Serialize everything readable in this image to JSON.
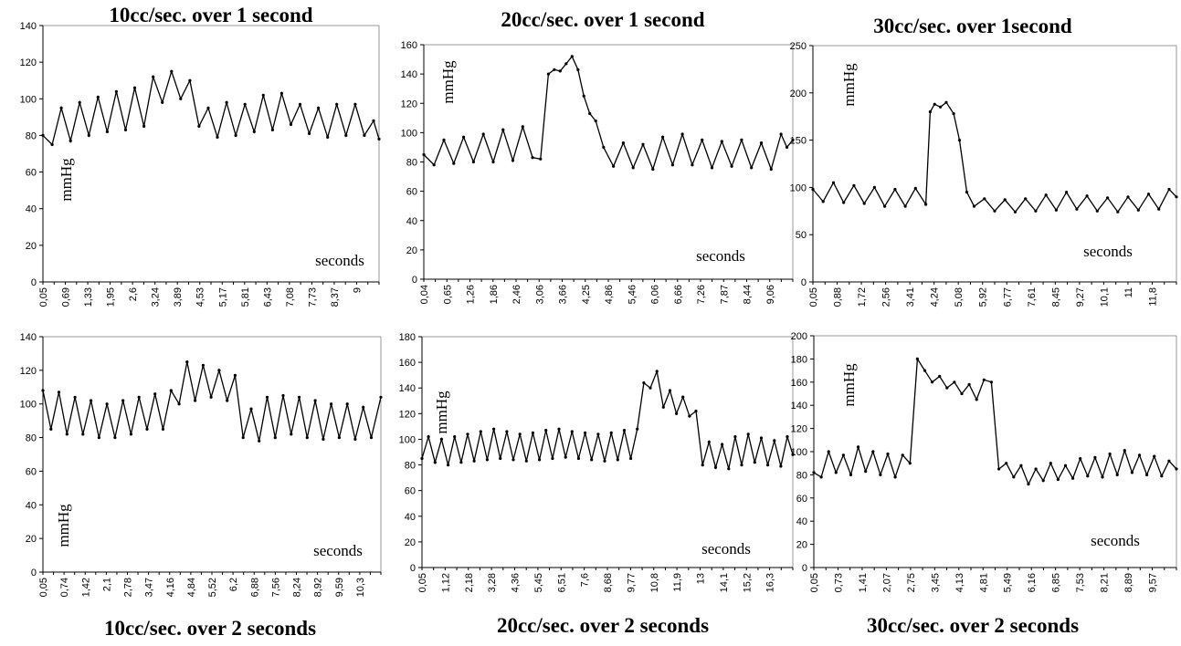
{
  "chart_data": [
    {
      "type": "line",
      "title": "10cc/sec. over 1 second",
      "ylabel": "mmHg",
      "xlabel": "seconds",
      "ylim": [
        0,
        140
      ],
      "yticks": [
        0,
        20,
        40,
        60,
        80,
        100,
        120,
        140
      ],
      "xticks": [
        "0,05",
        "0,69",
        "1,33",
        "1,95",
        "2,6",
        "3,24",
        "3,89",
        "4,53",
        "5,17",
        "5,81",
        "6,43",
        "7,08",
        "7,73",
        "8,37",
        "9"
      ],
      "xrange": [
        0.05,
        9.2
      ],
      "series": [
        {
          "x": [
            0.05,
            0.3,
            0.55,
            0.8,
            1.05,
            1.3,
            1.55,
            1.8,
            2.05,
            2.3,
            2.55,
            2.8,
            3.05,
            3.3,
            3.55,
            3.8,
            4.05,
            4.3,
            4.55,
            4.8,
            5.05,
            5.3,
            5.55,
            5.8,
            6.05,
            6.3,
            6.55,
            6.8,
            7.05,
            7.3,
            7.55,
            7.8,
            8.05,
            8.3,
            8.55,
            8.8,
            9.05,
            9.2
          ],
          "y": [
            80,
            75,
            95,
            77,
            98,
            80,
            101,
            82,
            104,
            83,
            106,
            85,
            112,
            98,
            115,
            100,
            110,
            85,
            95,
            79,
            98,
            80,
            97,
            82,
            102,
            83,
            103,
            86,
            97,
            81,
            95,
            79,
            97,
            80,
            97,
            80,
            88,
            78
          ]
        }
      ]
    },
    {
      "type": "line",
      "title": "20cc/sec. over 1 second",
      "ylabel": "mmHg",
      "xlabel": "seconds",
      "ylim": [
        0,
        160
      ],
      "yticks": [
        0,
        20,
        40,
        60,
        80,
        100,
        120,
        140,
        160
      ],
      "xticks": [
        "0,04",
        "0,65",
        "1,26",
        "1,86",
        "2,46",
        "3,06",
        "3,66",
        "4,25",
        "4,86",
        "5,46",
        "6,06",
        "6,66",
        "7,26",
        "7,87",
        "8,44",
        "9,06"
      ],
      "xrange": [
        0.04,
        9.4
      ],
      "series": [
        {
          "x": [
            0.04,
            0.3,
            0.55,
            0.8,
            1.05,
            1.3,
            1.55,
            1.8,
            2.05,
            2.3,
            2.55,
            2.8,
            3.0,
            3.2,
            3.35,
            3.5,
            3.65,
            3.8,
            3.95,
            4.1,
            4.25,
            4.4,
            4.6,
            4.85,
            5.1,
            5.35,
            5.6,
            5.85,
            6.1,
            6.35,
            6.6,
            6.85,
            7.1,
            7.35,
            7.6,
            7.85,
            8.1,
            8.35,
            8.6,
            8.85,
            9.1,
            9.25,
            9.4
          ],
          "y": [
            85,
            78,
            95,
            79,
            97,
            80,
            99,
            80,
            102,
            81,
            104,
            83,
            82,
            140,
            143,
            142,
            147,
            152,
            143,
            125,
            113,
            108,
            90,
            77,
            93,
            76,
            92,
            75,
            97,
            78,
            99,
            78,
            95,
            76,
            94,
            77,
            95,
            76,
            93,
            75,
            99,
            90,
            95
          ]
        }
      ]
    },
    {
      "type": "line",
      "title": "30cc/sec. over 1second",
      "ylabel": "mmHg",
      "xlabel": "seconds",
      "ylim": [
        0,
        250
      ],
      "yticks": [
        0,
        50,
        100,
        150,
        200,
        250
      ],
      "xticks": [
        "0,05",
        "0,88",
        "1,72",
        "2,56",
        "3,41",
        "4,24",
        "5,08",
        "5,92",
        "6,77",
        "7,61",
        "8,45",
        "9,27",
        "10,1",
        "11",
        "11,8"
      ],
      "xrange": [
        0.05,
        12.45
      ],
      "series": [
        {
          "x": [
            0.05,
            0.4,
            0.75,
            1.1,
            1.45,
            1.8,
            2.15,
            2.5,
            2.85,
            3.2,
            3.55,
            3.9,
            4.05,
            4.2,
            4.4,
            4.6,
            4.85,
            5.05,
            5.3,
            5.55,
            5.9,
            6.25,
            6.6,
            6.95,
            7.3,
            7.65,
            8.0,
            8.35,
            8.7,
            9.05,
            9.4,
            9.75,
            10.1,
            10.45,
            10.8,
            11.15,
            11.5,
            11.85,
            12.2,
            12.45
          ],
          "y": [
            98,
            85,
            105,
            84,
            102,
            83,
            100,
            80,
            98,
            80,
            99,
            82,
            180,
            188,
            185,
            190,
            178,
            150,
            95,
            80,
            88,
            75,
            87,
            74,
            88,
            75,
            92,
            76,
            95,
            77,
            91,
            75,
            89,
            74,
            90,
            76,
            93,
            77,
            98,
            90
          ]
        }
      ]
    },
    {
      "type": "line",
      "title": "10cc/sec. over 2 seconds",
      "ylabel": "mmHg",
      "xlabel": "seconds",
      "ylim": [
        0,
        140
      ],
      "yticks": [
        0,
        20,
        40,
        60,
        80,
        100,
        120,
        140
      ],
      "xticks": [
        "0,05",
        "0,74",
        "1,42",
        "2,1",
        "2,78",
        "3,47",
        "4,16",
        "4,84",
        "5,52",
        "6,2",
        "6,88",
        "7,56",
        "8,24",
        "8,92",
        "9,59",
        "10,3"
      ],
      "xrange": [
        0.05,
        10.6
      ],
      "series": [
        {
          "x": [
            0.05,
            0.3,
            0.55,
            0.8,
            1.05,
            1.3,
            1.55,
            1.8,
            2.05,
            2.3,
            2.55,
            2.8,
            3.05,
            3.3,
            3.55,
            3.8,
            4.05,
            4.3,
            4.55,
            4.8,
            5.05,
            5.3,
            5.55,
            5.8,
            6.05,
            6.3,
            6.55,
            6.8,
            7.05,
            7.3,
            7.55,
            7.8,
            8.05,
            8.3,
            8.55,
            8.8,
            9.05,
            9.3,
            9.55,
            9.8,
            10.05,
            10.3,
            10.6
          ],
          "y": [
            108,
            85,
            107,
            82,
            104,
            82,
            102,
            80,
            100,
            80,
            102,
            82,
            104,
            85,
            106,
            85,
            108,
            100,
            125,
            102,
            123,
            104,
            120,
            102,
            117,
            80,
            97,
            78,
            104,
            80,
            105,
            82,
            104,
            80,
            102,
            79,
            100,
            80,
            100,
            79,
            98,
            80,
            104
          ]
        }
      ]
    },
    {
      "type": "line",
      "title": "20cc/sec. over 2 seconds",
      "ylabel": "mmHg",
      "xlabel": "seconds",
      "ylim": [
        0,
        180
      ],
      "yticks": [
        0,
        20,
        40,
        60,
        80,
        100,
        120,
        140,
        160,
        180
      ],
      "xticks": [
        "0,05",
        "1,12",
        "2,18",
        "3,28",
        "4,36",
        "5,45",
        "6,51",
        "7,6",
        "8,68",
        "9,77",
        "10,8",
        "11,9",
        "13",
        "14,1",
        "15,2",
        "16,3"
      ],
      "xrange": [
        0.05,
        17.1
      ],
      "series": [
        {
          "x": [
            0.05,
            0.35,
            0.65,
            0.95,
            1.25,
            1.55,
            1.85,
            2.15,
            2.45,
            2.75,
            3.05,
            3.35,
            3.65,
            3.95,
            4.25,
            4.55,
            4.85,
            5.15,
            5.45,
            5.75,
            6.05,
            6.35,
            6.65,
            6.95,
            7.25,
            7.55,
            7.85,
            8.15,
            8.45,
            8.75,
            9.05,
            9.35,
            9.65,
            9.95,
            10.25,
            10.55,
            10.85,
            11.15,
            11.45,
            11.75,
            12.05,
            12.35,
            12.65,
            12.95,
            13.25,
            13.55,
            13.85,
            14.15,
            14.45,
            14.75,
            15.05,
            15.35,
            15.65,
            15.95,
            16.25,
            16.55,
            16.85,
            17.1
          ],
          "y": [
            85,
            102,
            82,
            100,
            80,
            102,
            82,
            104,
            83,
            106,
            84,
            108,
            85,
            106,
            84,
            104,
            83,
            105,
            84,
            107,
            85,
            108,
            86,
            106,
            85,
            105,
            84,
            104,
            83,
            105,
            84,
            107,
            85,
            108,
            144,
            140,
            153,
            125,
            138,
            120,
            133,
            118,
            122,
            80,
            98,
            78,
            96,
            77,
            102,
            80,
            104,
            82,
            101,
            80,
            99,
            79,
            102,
            88
          ]
        }
      ]
    },
    {
      "type": "line",
      "title": "30cc/sec. over 2 seconds",
      "ylabel": "mmHg",
      "xlabel": "seconds",
      "ylim": [
        0,
        200
      ],
      "yticks": [
        0,
        20,
        40,
        60,
        80,
        100,
        120,
        140,
        160,
        180,
        200
      ],
      "xticks": [
        "0,05",
        "0,73",
        "1,41",
        "2,07",
        "2,75",
        "3,45",
        "4,13",
        "4,81",
        "5,49",
        "6,16",
        "6,85",
        "7,53",
        "8,21",
        "8,89",
        "9,57"
      ],
      "xrange": [
        0.05,
        9.85
      ],
      "series": [
        {
          "x": [
            0.05,
            0.25,
            0.45,
            0.65,
            0.85,
            1.05,
            1.25,
            1.45,
            1.65,
            1.85,
            2.05,
            2.25,
            2.45,
            2.65,
            2.85,
            3.05,
            3.25,
            3.45,
            3.65,
            3.85,
            4.05,
            4.25,
            4.45,
            4.65,
            4.85,
            5.05,
            5.25,
            5.45,
            5.65,
            5.85,
            6.05,
            6.25,
            6.45,
            6.65,
            6.85,
            7.05,
            7.25,
            7.45,
            7.65,
            7.85,
            8.05,
            8.25,
            8.45,
            8.65,
            8.85,
            9.05,
            9.25,
            9.45,
            9.65,
            9.85
          ],
          "y": [
            82,
            78,
            100,
            82,
            97,
            80,
            104,
            83,
            100,
            80,
            98,
            78,
            97,
            90,
            180,
            170,
            160,
            165,
            155,
            160,
            150,
            158,
            145,
            162,
            160,
            85,
            90,
            78,
            88,
            72,
            85,
            75,
            90,
            76,
            88,
            77,
            94,
            79,
            95,
            78,
            98,
            80,
            101,
            82,
            97,
            80,
            96,
            79,
            92,
            85
          ]
        }
      ]
    }
  ]
}
